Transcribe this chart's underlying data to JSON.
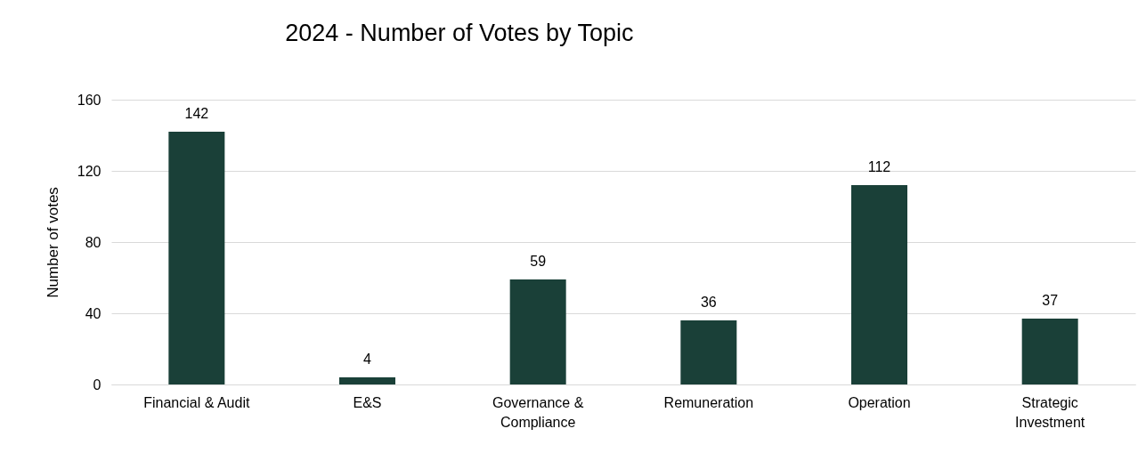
{
  "chart_data": {
    "type": "bar",
    "title": "2024 - Number of Votes by Topic",
    "ylabel": "Number of votes",
    "categories": [
      "Financial & Audit",
      "E&S",
      "Governance & Compliance",
      "Remuneration",
      "Operation",
      "Strategic Investment"
    ],
    "values": [
      142,
      4,
      59,
      36,
      112,
      37
    ],
    "color": "#1a4038",
    "ylim": [
      0,
      160
    ],
    "yticks": [
      0,
      40,
      80,
      120,
      160
    ],
    "grid": "y",
    "data_labels": true
  }
}
